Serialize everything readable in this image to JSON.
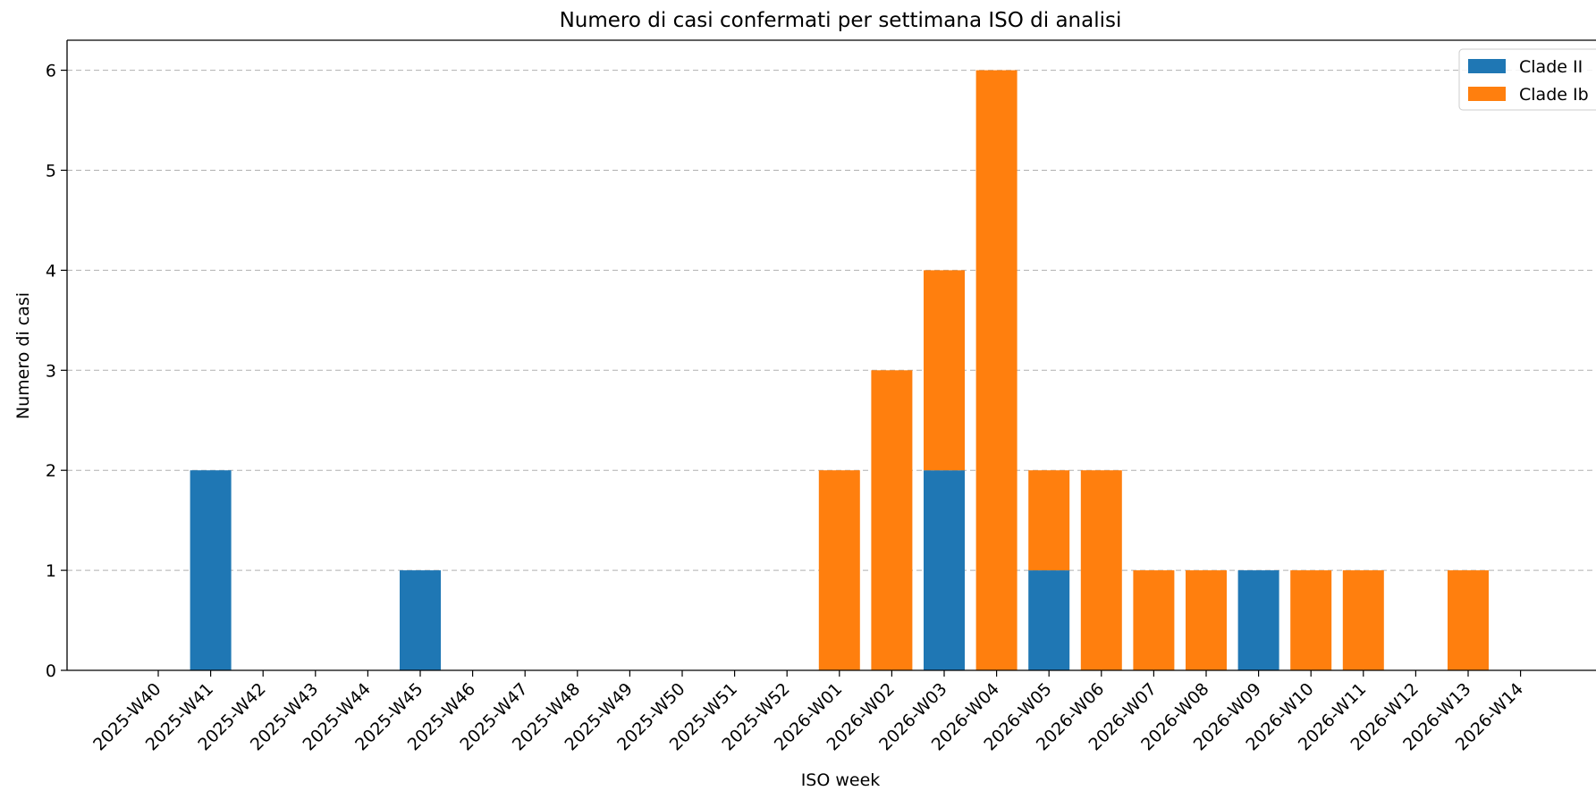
{
  "chart_data": {
    "type": "bar",
    "stacked": true,
    "title": "Numero di casi confermati per settimana ISO di analisi",
    "xlabel": "ISO week",
    "ylabel": "Numero di casi",
    "ylim": [
      0,
      6.3
    ],
    "yticks": [
      0,
      1,
      2,
      3,
      4,
      5,
      6
    ],
    "grid": "y-dashed",
    "legend_position": "top-right",
    "categories": [
      "2025-W40",
      "2025-W41",
      "2025-W42",
      "2025-W43",
      "2025-W44",
      "2025-W45",
      "2025-W46",
      "2025-W47",
      "2025-W48",
      "2025-W49",
      "2025-W50",
      "2025-W51",
      "2025-W52",
      "2026-W01",
      "2026-W02",
      "2026-W03",
      "2026-W04",
      "2026-W05",
      "2026-W06",
      "2026-W07",
      "2026-W08",
      "2026-W09",
      "2026-W10",
      "2026-W11",
      "2026-W12",
      "2026-W13",
      "2026-W14"
    ],
    "series": [
      {
        "name": "Clade II",
        "color": "#1f77b4",
        "values": [
          0,
          2,
          0,
          0,
          0,
          1,
          0,
          0,
          0,
          0,
          0,
          0,
          0,
          0,
          0,
          2,
          0,
          1,
          0,
          0,
          0,
          1,
          0,
          0,
          0,
          0,
          0
        ]
      },
      {
        "name": "Clade Ib",
        "color": "#ff7f0e",
        "values": [
          0,
          0,
          0,
          0,
          0,
          0,
          0,
          0,
          0,
          0,
          0,
          0,
          0,
          2,
          3,
          2,
          6,
          1,
          2,
          1,
          1,
          0,
          1,
          1,
          0,
          1,
          0
        ]
      }
    ]
  }
}
